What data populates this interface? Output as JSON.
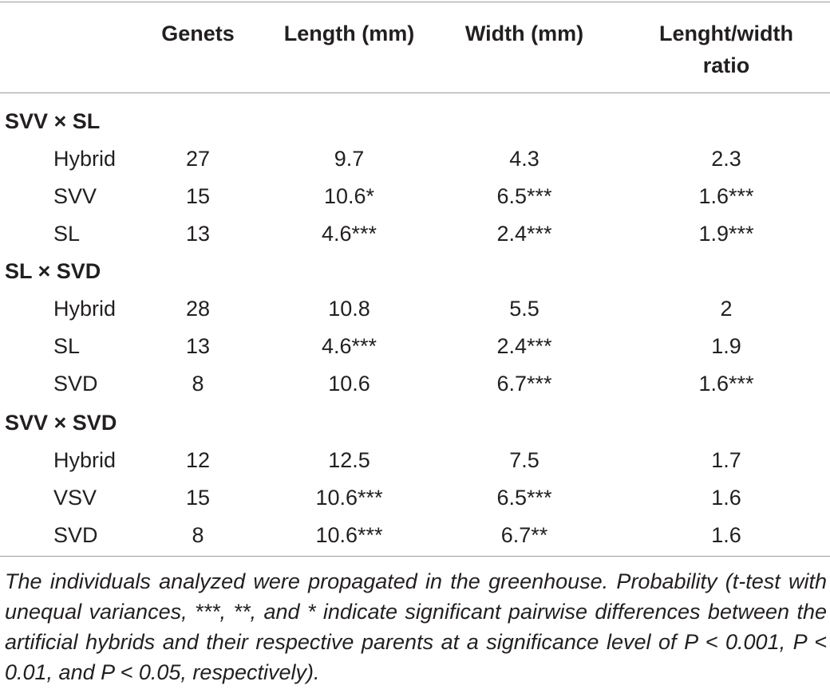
{
  "headers": {
    "col1": "",
    "col2": "Genets",
    "col3": "Length (mm)",
    "col4": "Width (mm)",
    "col5_line1": "Lenght/width",
    "col5_line2": "ratio"
  },
  "groups": [
    {
      "title": "SVV × SL",
      "rows": [
        {
          "name": "Hybrid",
          "genets": "27",
          "length": "9.7",
          "width": "4.3",
          "ratio": "2.3"
        },
        {
          "name": "SVV",
          "genets": "15",
          "length": "10.6*",
          "width": "6.5***",
          "ratio": "1.6***"
        },
        {
          "name": "SL",
          "genets": "13",
          "length": "4.6***",
          "width": "2.4***",
          "ratio": "1.9***"
        }
      ]
    },
    {
      "title": "SL × SVD",
      "rows": [
        {
          "name": "Hybrid",
          "genets": "28",
          "length": "10.8",
          "width": "5.5",
          "ratio": "2"
        },
        {
          "name": "SL",
          "genets": "13",
          "length": "4.6***",
          "width": "2.4***",
          "ratio": "1.9"
        },
        {
          "name": "SVD",
          "genets": "8",
          "length": "10.6",
          "width": "6.7***",
          "ratio": "1.6***"
        }
      ]
    },
    {
      "title": "SVV × SVD",
      "rows": [
        {
          "name": "Hybrid",
          "genets": "12",
          "length": "12.5",
          "width": "7.5",
          "ratio": "1.7"
        },
        {
          "name": "VSV",
          "genets": "15",
          "length": "10.6***",
          "width": "6.5***",
          "ratio": "1.6"
        },
        {
          "name": "SVD",
          "genets": "8",
          "length": "10.6***",
          "width": "6.7**",
          "ratio": "1.6"
        }
      ]
    }
  ],
  "footnote": "The individuals analyzed were propagated in the greenhouse. Probability (t-test with unequal variances, ***, **, and * indicate significant pairwise differences between the artificial hybrids and their respective parents at a significance level of P < 0.001, P < 0.01, and P < 0.05, respectively)."
}
